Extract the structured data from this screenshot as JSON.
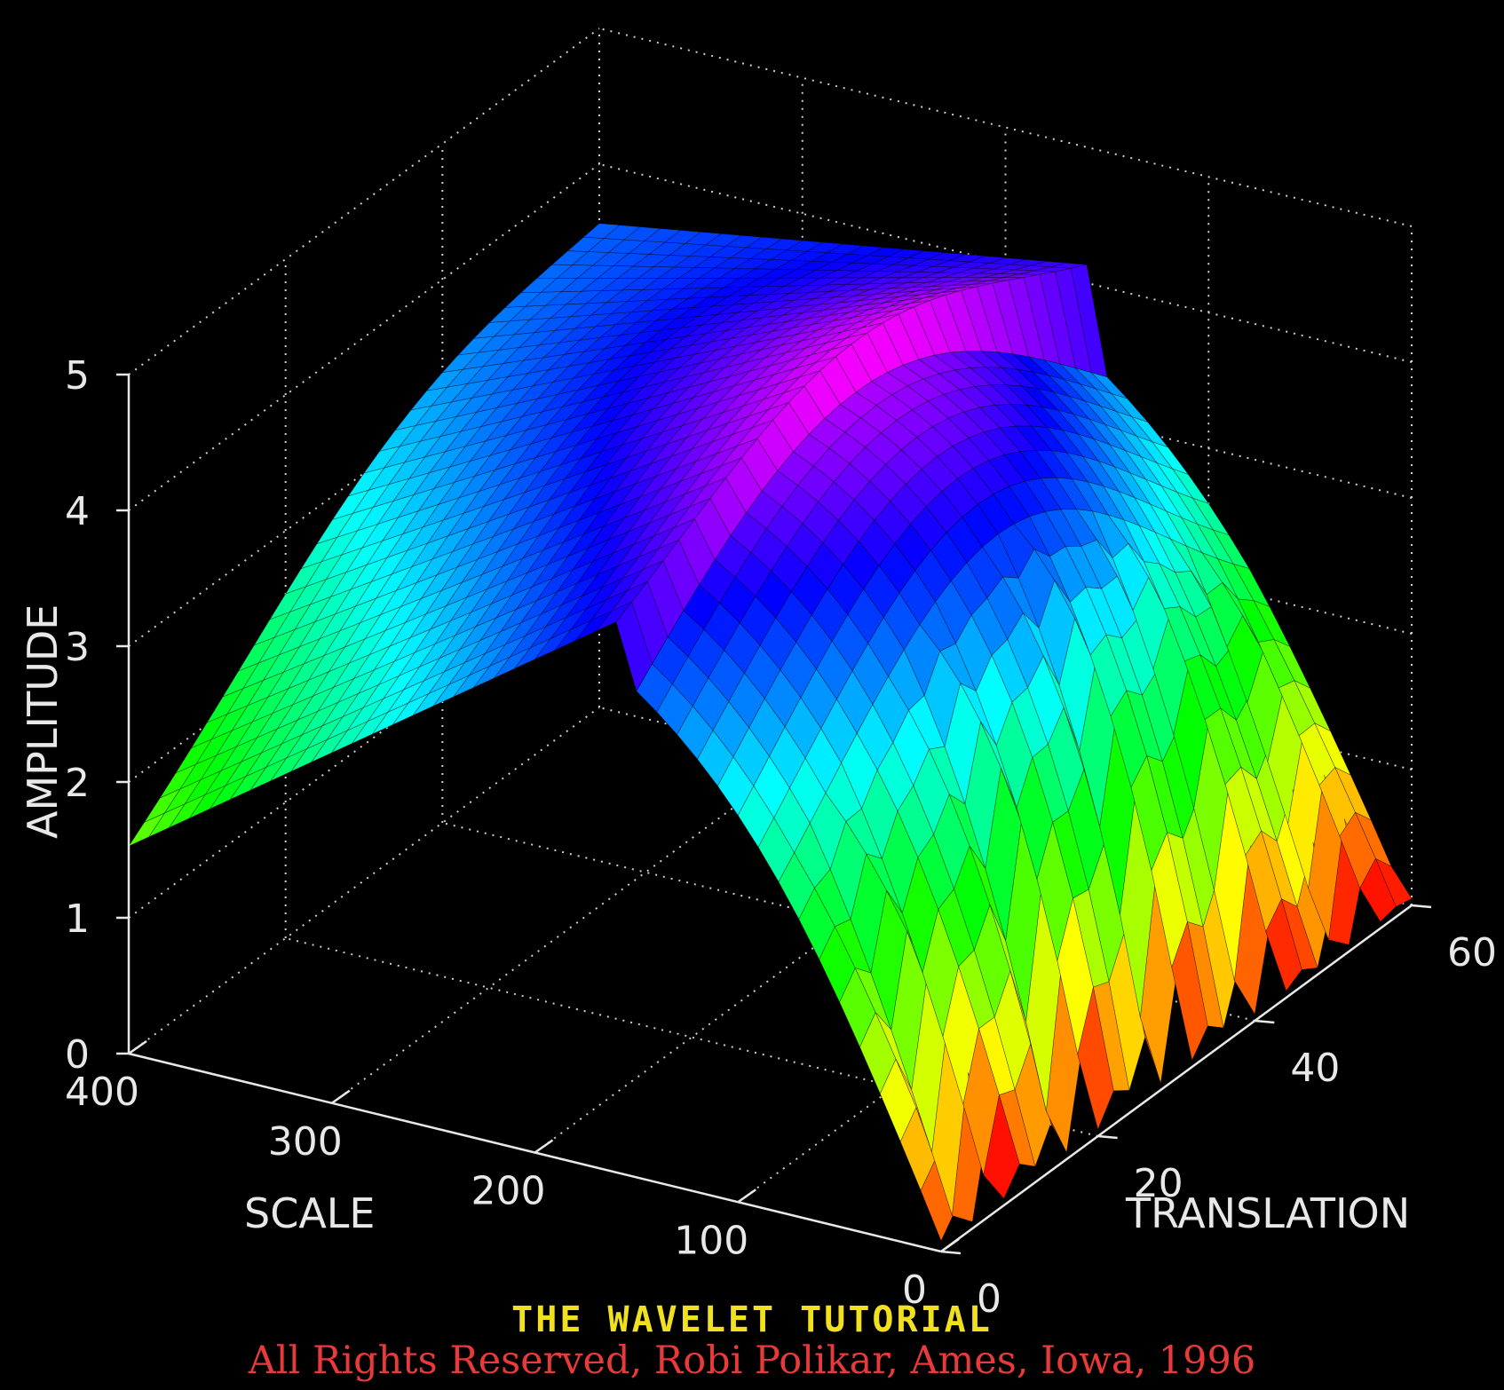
{
  "chart_data": {
    "type": "surface",
    "zlabel": "AMPLITUDE",
    "xlabel": "SCALE",
    "ylabel": "TRANSLATION",
    "zlim": [
      0,
      5
    ],
    "xlim": [
      0,
      400
    ],
    "ylim": [
      0,
      60
    ],
    "z_ticks": [
      "0",
      "1",
      "2",
      "3",
      "4",
      "5"
    ],
    "scale_ticks": [
      "0",
      "100",
      "200",
      "300",
      "400"
    ],
    "translation_ticks": [
      "0",
      "20",
      "40",
      "60"
    ],
    "grid": true,
    "colormap": "hsv",
    "background": "#000000",
    "surface_summary": {
      "peak_amplitude": 4.9,
      "peak_scale": 140,
      "peak_translation": 28,
      "amplitude_at_scale_400_translation_0": 1.8,
      "amplitude_at_scale_400_translation_60": 4.2,
      "amplitude_near_scale_0": 0.3
    }
  },
  "footer": {
    "title": "THE WAVELET TUTORIAL",
    "credit": "All Rights Reserved, Robi Polikar, Ames, Iowa, 1996"
  },
  "colors": {
    "title": "#f0e020",
    "credit": "#e83a3a",
    "axes": "#e8e8e8"
  }
}
